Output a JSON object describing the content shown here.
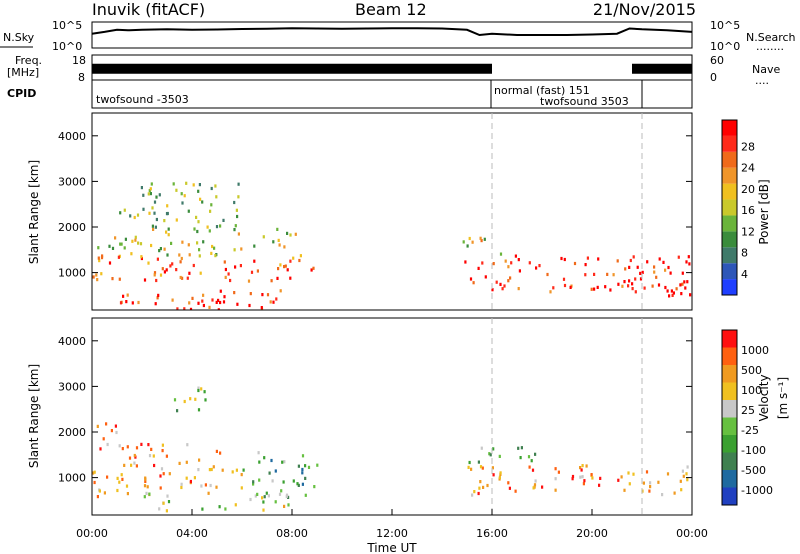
{
  "header": {
    "station": "Inuvik (fitACF)",
    "beam": "Beam 12",
    "date": "21/Nov/2015"
  },
  "chart_data": [
    {
      "panel": "nsky",
      "type": "line",
      "left_label": "N.Sky",
      "right_label": "N.Search",
      "right_label_dots": "........",
      "left_ticks": [
        "10^5",
        "10^0"
      ],
      "right_ticks": [
        "10^5",
        "10^0"
      ],
      "series": [
        {
          "x": [
            0,
            0.5,
            1,
            1.5,
            2,
            3,
            4,
            5,
            6,
            7,
            8,
            9,
            10,
            11,
            12,
            13,
            14,
            15,
            15.5,
            16,
            17,
            18,
            19,
            20,
            21,
            21.5,
            22,
            23,
            24
          ],
          "values": [
            0.55,
            0.62,
            0.7,
            0.68,
            0.7,
            0.72,
            0.7,
            0.71,
            0.73,
            0.74,
            0.76,
            0.75,
            0.74,
            0.75,
            0.76,
            0.76,
            0.75,
            0.7,
            0.5,
            0.55,
            0.5,
            0.5,
            0.5,
            0.52,
            0.55,
            0.75,
            0.72,
            0.68,
            0.62
          ]
        }
      ]
    },
    {
      "panel": "freq",
      "type": "bar",
      "left_label_lines": [
        "Freq.",
        "[MHz]"
      ],
      "left_ticks": [
        "8",
        "18"
      ],
      "right_ticks": [
        "60",
        "0"
      ],
      "right_label": "Nave",
      "right_label_dots": "....",
      "ylim": [
        8,
        18
      ],
      "series": [
        {
          "name": "freq",
          "x_ranges": [
            [
              0,
              16
            ],
            [
              21.6,
              24
            ]
          ],
          "value": 12.5
        }
      ]
    },
    {
      "panel": "cpid",
      "label": "CPID",
      "segments": [
        {
          "start": 0,
          "end": 16,
          "text": "twofsound -3503"
        },
        {
          "start": 16,
          "end": 21.9,
          "text_lines": [
            "normal (fast) 151",
            "twofsound 3503"
          ]
        },
        {
          "start": 21.9,
          "end": 24,
          "text": ""
        }
      ]
    },
    {
      "panel": "power",
      "type": "heatmap",
      "ylabel": "Slant Range [km]",
      "xlim": [
        0,
        24
      ],
      "ylim": [
        180,
        4500
      ],
      "yticks": [
        1000,
        2000,
        3000,
        4000
      ],
      "colorbar": {
        "label": "Power [dB]",
        "range": [
          0,
          32
        ],
        "ticks": [
          4,
          8,
          12,
          16,
          20,
          24,
          28
        ],
        "colors": [
          "#1f3fff",
          "#2d56b8",
          "#3f7a6a",
          "#3a8c3c",
          "#6ab43a",
          "#c9c92b",
          "#f0c020",
          "#f0952a",
          "#f06a1a",
          "#ff2a1a",
          "#ff0000"
        ]
      },
      "guide_lines_x": [
        16,
        22
      ],
      "regions": [
        {
          "t0": 0.0,
          "t1": 9.0,
          "r0": 800,
          "r1": 1400,
          "level": 0.8
        },
        {
          "t0": 0.2,
          "t1": 8.5,
          "r0": 1400,
          "r1": 2000,
          "level": 0.5
        },
        {
          "t0": 1.0,
          "t1": 6.0,
          "r0": 2000,
          "r1": 3000,
          "level": 0.4
        },
        {
          "t0": 1.0,
          "t1": 8.0,
          "r0": 350,
          "r1": 650,
          "level": 0.85
        },
        {
          "t0": 3.0,
          "t1": 8.5,
          "r0": 200,
          "r1": 500,
          "level": 0.9
        },
        {
          "t0": 14.8,
          "t1": 24.0,
          "r0": 600,
          "r1": 1400,
          "level": 0.9
        },
        {
          "t0": 14.8,
          "t1": 16.5,
          "r0": 1400,
          "r1": 1800,
          "level": 0.55
        },
        {
          "t0": 21.0,
          "t1": 24.0,
          "r0": 500,
          "r1": 900,
          "level": 0.95
        }
      ]
    },
    {
      "panel": "velocity",
      "type": "heatmap",
      "ylabel": "Slant Range [km]",
      "xlabel": "Time UT",
      "xlim": [
        0,
        24
      ],
      "ylim": [
        180,
        4500
      ],
      "xticks": [
        "00:00",
        "04:00",
        "08:00",
        "12:00",
        "16:00",
        "20:00",
        "00:00"
      ],
      "yticks": [
        1000,
        2000,
        3000,
        4000
      ],
      "colorbar": {
        "label": "Velocity",
        "label_unit": "[m s⁻¹]",
        "ticks": [
          "1000",
          "500",
          "100",
          "25",
          "-25",
          "-100",
          "-500",
          "-1000"
        ],
        "colors": [
          "#2040c0",
          "#1f6aa0",
          "#3f8050",
          "#3aa030",
          "#66c040",
          "#c8c8c8",
          "#f0c020",
          "#f09a20",
          "#ff6010",
          "#ff1010"
        ]
      },
      "guide_lines_x": [
        16,
        22
      ],
      "regions": [
        {
          "t0": 0.0,
          "t1": 1.5,
          "r0": 600,
          "r1": 2300,
          "level": 0.7
        },
        {
          "t0": 1.5,
          "t1": 6.0,
          "r0": 800,
          "r1": 1800,
          "level": 0.75
        },
        {
          "t0": 6.0,
          "t1": 9.0,
          "r0": 600,
          "r1": 1600,
          "level": 0.35
        },
        {
          "t0": 2.0,
          "t1": 8.0,
          "r0": 300,
          "r1": 700,
          "level": 0.55
        },
        {
          "t0": 3.0,
          "t1": 5.0,
          "r0": 2500,
          "r1": 3000,
          "level": 0.5
        },
        {
          "t0": 15.0,
          "t1": 24.0,
          "r0": 600,
          "r1": 1300,
          "level": 0.75
        },
        {
          "t0": 15.0,
          "t1": 18.0,
          "r0": 1300,
          "r1": 1700,
          "level": 0.4
        }
      ]
    }
  ]
}
